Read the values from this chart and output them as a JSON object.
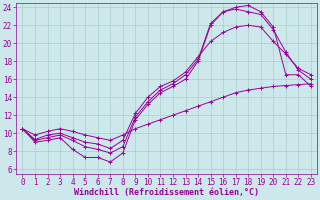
{
  "background_color": "#cce8ea",
  "grid_color": "#aacccc",
  "line_color": "#990099",
  "marker_color": "#990099",
  "xlabel": "Windchill (Refroidissement éolien,°C)",
  "xlim": [
    -0.5,
    23.5
  ],
  "ylim": [
    5.5,
    24.5
  ],
  "xticks": [
    0,
    1,
    2,
    3,
    4,
    5,
    6,
    7,
    8,
    9,
    10,
    11,
    12,
    13,
    14,
    15,
    16,
    17,
    18,
    19,
    20,
    21,
    22,
    23
  ],
  "yticks": [
    6,
    8,
    10,
    12,
    14,
    16,
    18,
    20,
    22,
    24
  ],
  "curves": [
    {
      "x": [
        0,
        1,
        2,
        3,
        4,
        5,
        6,
        7,
        8,
        9,
        10,
        11,
        12,
        13,
        14,
        15,
        16,
        17,
        18,
        19,
        20,
        21,
        22,
        23
      ],
      "y": [
        10.5,
        9.0,
        9.2,
        9.5,
        8.2,
        7.3,
        7.3,
        6.8,
        7.8,
        11.5,
        13.2,
        14.5,
        15.2,
        16.0,
        18.0,
        22.0,
        23.5,
        24.0,
        24.2,
        23.5,
        21.8,
        16.5,
        16.5,
        15.2
      ]
    },
    {
      "x": [
        0,
        1,
        2,
        3,
        4,
        5,
        6,
        7,
        8,
        9,
        10,
        11,
        12,
        13,
        14,
        15,
        16,
        17,
        18,
        19,
        20,
        21,
        22,
        23
      ],
      "y": [
        10.5,
        9.2,
        9.5,
        9.8,
        9.2,
        8.5,
        8.2,
        7.8,
        8.5,
        11.8,
        13.5,
        14.8,
        15.5,
        16.5,
        18.2,
        22.2,
        23.5,
        23.8,
        23.5,
        23.2,
        21.5,
        19.0,
        17.0,
        16.0
      ]
    },
    {
      "x": [
        0,
        1,
        2,
        3,
        4,
        5,
        6,
        7,
        8,
        9,
        10,
        11,
        12,
        13,
        14,
        15,
        16,
        17,
        18,
        19,
        20,
        21,
        22,
        23
      ],
      "y": [
        10.5,
        9.3,
        9.8,
        10.0,
        9.5,
        9.0,
        8.8,
        8.3,
        9.2,
        12.2,
        14.0,
        15.2,
        15.8,
        16.8,
        18.5,
        20.2,
        21.2,
        21.8,
        22.0,
        21.8,
        20.2,
        18.8,
        17.2,
        16.5
      ]
    },
    {
      "x": [
        0,
        1,
        2,
        3,
        4,
        5,
        6,
        7,
        8,
        9,
        10,
        11,
        12,
        13,
        14,
        15,
        16,
        17,
        18,
        19,
        20,
        21,
        22,
        23
      ],
      "y": [
        10.5,
        9.8,
        10.2,
        10.5,
        10.2,
        9.8,
        9.5,
        9.2,
        9.8,
        10.5,
        11.0,
        11.5,
        12.0,
        12.5,
        13.0,
        13.5,
        14.0,
        14.5,
        14.8,
        15.0,
        15.2,
        15.3,
        15.4,
        15.5
      ]
    }
  ],
  "font_size": 6,
  "label_font_size": 6,
  "tick_font_size": 5.5
}
